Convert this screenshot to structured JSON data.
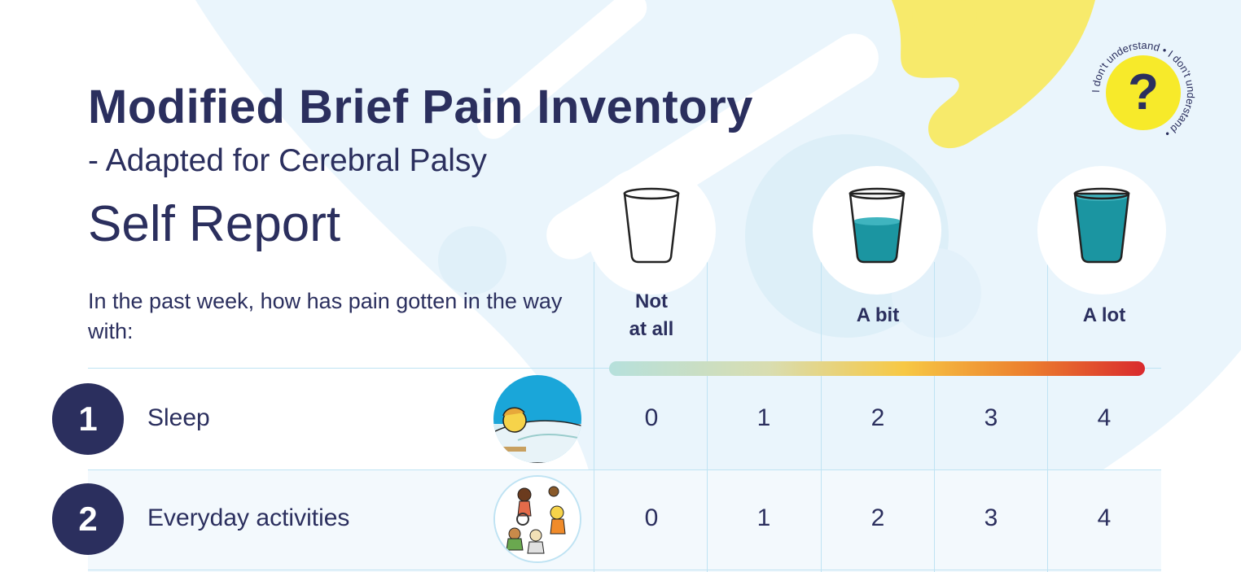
{
  "document": {
    "title": "Modified Brief Pain Inventory",
    "subtitle": "- Adapted for Cerebral Palsy",
    "report_type": "Self Report",
    "question": "In the past week, how has pain gotten in the way with:"
  },
  "help_badge": {
    "symbol": "?",
    "ring_text": "I don't understand • I don't understand •"
  },
  "scale": {
    "headers": [
      {
        "line1": "Not",
        "line2": "at all"
      },
      {
        "line1": "",
        "line2": ""
      },
      {
        "line1": "A bit",
        "line2": ""
      },
      {
        "line1": "",
        "line2": ""
      },
      {
        "line1": "A lot",
        "line2": ""
      }
    ],
    "glass_fill_levels": [
      0,
      0.5,
      0.95
    ],
    "gradient_colors": [
      "#b6e0dc",
      "#d9ddb0",
      "#f7c844",
      "#ec7f2e",
      "#d92a2e"
    ]
  },
  "items": [
    {
      "number": "1",
      "label": "Sleep",
      "image": "sleeping-child-icon",
      "scores": [
        "0",
        "1",
        "2",
        "3",
        "4"
      ]
    },
    {
      "number": "2",
      "label": "Everyday activities",
      "image": "playing-children-icon",
      "scores": [
        "0",
        "1",
        "2",
        "3",
        "4"
      ]
    }
  ],
  "colors": {
    "navy": "#2b2f5e",
    "yellow": "#f7ea6b",
    "light_blue": "#e7f4fb",
    "water": "#1b95a1"
  }
}
